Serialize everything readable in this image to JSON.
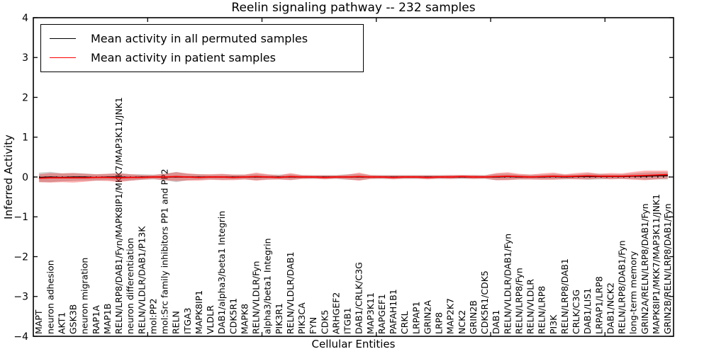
{
  "chart_data": {
    "type": "line",
    "title": "Reelin signaling pathway -- 232 samples",
    "xlabel": "Cellular Entities",
    "ylabel": "Inferred Activity",
    "ylim": [
      -4,
      4
    ],
    "xlim": [
      0,
      56
    ],
    "grid": false,
    "legend_position": "upper left",
    "zero_line": {
      "style": "dotted",
      "color": "#000000",
      "y": 0
    },
    "ytick_values": [
      4,
      3,
      2,
      1,
      0,
      -1,
      -2,
      -3,
      -4
    ],
    "ytick_labels": [
      "4",
      "3",
      "2",
      "1",
      "0",
      "−1",
      "−2",
      "−3",
      "−4"
    ],
    "xtick_values": [
      10,
      20,
      30,
      40,
      50
    ],
    "categories": [
      "MAPT",
      "neuron adhesion",
      "AKT1",
      "GSK3B",
      "neuron migration",
      "RAP1A",
      "MAP1B",
      "RELN/LRP8/DAB1/Fyn/MAPK8IP1/MKK7/MAP3K11/JNK1",
      "neuron differentiation",
      "RELN/VLDLR/DAB1/P13K",
      "mol:PP2",
      "mol:Src family inhibitors PP1 and PP2",
      "RELN",
      "ITGA3",
      "MAPK8IP1",
      "VLDLR",
      "DAB1/alpha3/beta1 Integrin",
      "CDK5R1",
      "MAPK8",
      "RELN/VLDLR/Fyn",
      "alpha3/beta1 Integrin",
      "PIK3R1",
      "RELN/VLDLR/DAB1",
      "PIK3CA",
      "FYN",
      "CDK5",
      "ARHGEF2",
      "ITGB1",
      "DAB1/CRLK/C3G",
      "MAP3K11",
      "RAPGEF1",
      "PAFAH1B1",
      "CRKL",
      "LRPAP1",
      "GRIN2A",
      "LRP8",
      "MAP2K7",
      "NCK2",
      "GRIN2B",
      "CDK5R1/CDK5",
      "DAB1",
      "RELN/VLDLR/DAB1/Fyn",
      "RELN/LRP8/Fyn",
      "RELN/VLDLR",
      "RELN/LRP8",
      "PI3K",
      "RELN/LRP8/DAB1",
      "CRLK/C3G",
      "DAB1/LIS1",
      "LRPAP1/LRP8",
      "DAB1/NCK2",
      "RELN/LRP8/DAB1/Fyn",
      "long-term memory",
      "GRIN2A/RELN/LRP8/DAB1/Fyn",
      "MAPK8IP1/MKK7/MAP3K11/JNK1",
      "GRIN2B/RELN/LRP8/DAB1/Fyn"
    ],
    "series": [
      {
        "name": "Mean activity in all permuted samples",
        "color": "#000000",
        "band_color": "#808080",
        "band_opacity": 0.38,
        "line_width": 1.4,
        "mean": [
          -0.01,
          0.0,
          -0.01,
          0.0,
          0.0,
          -0.01,
          0.0,
          0.0,
          -0.01,
          0.0,
          0.0,
          0.0,
          0.0,
          0.0,
          0.0,
          0.0,
          0.0,
          0.0,
          0.0,
          0.0,
          0.0,
          0.0,
          0.0,
          0.0,
          0.0,
          0.0,
          0.0,
          0.0,
          0.0,
          0.0,
          0.0,
          0.0,
          0.0,
          0.0,
          0.0,
          0.0,
          0.0,
          0.0,
          0.0,
          0.0,
          0.0,
          0.01,
          0.0,
          0.0,
          0.0,
          0.01,
          0.0,
          0.01,
          0.01,
          0.01,
          0.01,
          0.01,
          0.02,
          0.02,
          0.03,
          0.03
        ],
        "band_halfwidth": [
          0.12,
          0.13,
          0.1,
          0.1,
          0.09,
          0.08,
          0.08,
          0.1,
          0.08,
          0.07,
          0.06,
          0.08,
          0.13,
          0.08,
          0.07,
          0.06,
          0.07,
          0.06,
          0.06,
          0.08,
          0.06,
          0.06,
          0.07,
          0.05,
          0.05,
          0.05,
          0.05,
          0.07,
          0.08,
          0.05,
          0.05,
          0.05,
          0.05,
          0.05,
          0.05,
          0.05,
          0.05,
          0.05,
          0.05,
          0.05,
          0.08,
          0.08,
          0.06,
          0.06,
          0.06,
          0.07,
          0.06,
          0.06,
          0.08,
          0.07,
          0.06,
          0.06,
          0.07,
          0.09,
          0.09,
          0.09
        ]
      },
      {
        "name": "Mean activity in patient samples",
        "color": "#ff0000",
        "band_color": "#ff0000",
        "band_opacity": 0.3,
        "line_width": 1.7,
        "mean": [
          -0.03,
          -0.02,
          -0.02,
          -0.02,
          -0.02,
          -0.01,
          -0.01,
          -0.02,
          -0.01,
          -0.01,
          0.0,
          0.0,
          0.01,
          0.0,
          -0.01,
          0.0,
          0.0,
          -0.01,
          0.0,
          0.01,
          0.0,
          -0.01,
          0.01,
          0.0,
          0.0,
          -0.01,
          0.0,
          0.0,
          0.01,
          0.0,
          0.0,
          -0.01,
          0.0,
          0.0,
          -0.01,
          0.0,
          0.0,
          0.01,
          0.0,
          0.0,
          0.01,
          0.02,
          0.01,
          0.0,
          0.01,
          0.02,
          0.01,
          0.02,
          0.03,
          0.02,
          0.02,
          0.02,
          0.03,
          0.04,
          0.05,
          0.06
        ],
        "band_halfwidth": [
          0.1,
          0.12,
          0.11,
          0.12,
          0.1,
          0.08,
          0.09,
          0.11,
          0.08,
          0.06,
          0.05,
          0.08,
          0.11,
          0.09,
          0.08,
          0.07,
          0.08,
          0.07,
          0.06,
          0.1,
          0.07,
          0.05,
          0.09,
          0.05,
          0.04,
          0.05,
          0.04,
          0.06,
          0.1,
          0.05,
          0.04,
          0.05,
          0.04,
          0.04,
          0.05,
          0.04,
          0.05,
          0.04,
          0.05,
          0.04,
          0.09,
          0.1,
          0.07,
          0.06,
          0.08,
          0.09,
          0.06,
          0.08,
          0.09,
          0.06,
          0.08,
          0.07,
          0.1,
          0.12,
          0.11,
          0.1
        ]
      }
    ]
  },
  "colors": {
    "axis": "#000000",
    "background": "#ffffff",
    "permuted_line": "#000000",
    "patient_line": "#ff0000"
  }
}
